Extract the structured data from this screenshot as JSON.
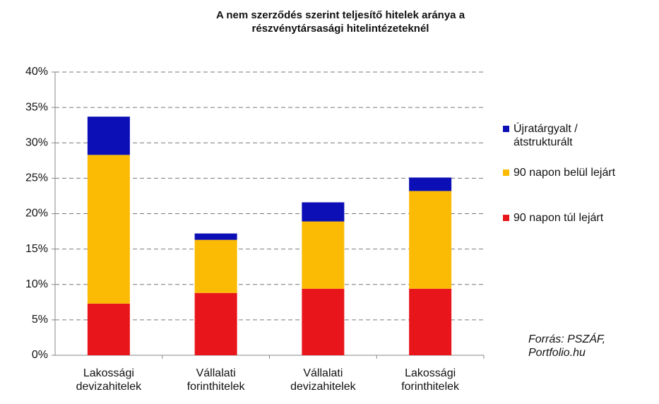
{
  "chart_data": {
    "type": "stacked_bar",
    "title": "A nem szerződés szerint teljesítő hitelek aránya a\nrészvénytársasági hitelintézeteknél",
    "categories": [
      "Lakossági\ndevizahitelek",
      "Vállalati\nforinthitelek",
      "Vállalati\ndevizahitelek",
      "Lakossági\nforinthitelek"
    ],
    "series": [
      {
        "name": "90 napon túl lejárt",
        "color": "#e8161b",
        "values": [
          7.3,
          8.8,
          9.4,
          9.4
        ]
      },
      {
        "name": "90 napon belül lejárt",
        "color": "#fbbb05",
        "values": [
          21.0,
          7.5,
          9.5,
          13.8
        ]
      },
      {
        "name": "Újratárgyalt /\nátstrukturált",
        "color": "#0b0fb5",
        "values": [
          5.4,
          0.9,
          2.7,
          1.9
        ]
      }
    ],
    "ylim": [
      0,
      40
    ],
    "yticks": [
      {
        "value": 0,
        "label": "0%"
      },
      {
        "value": 5,
        "label": "5%"
      },
      {
        "value": 10,
        "label": "10%"
      },
      {
        "value": 15,
        "label": "15%"
      },
      {
        "value": 20,
        "label": "20%"
      },
      {
        "value": 25,
        "label": "25%"
      },
      {
        "value": 30,
        "label": "30%"
      },
      {
        "value": 35,
        "label": "35%"
      },
      {
        "value": 40,
        "label": "40%"
      }
    ],
    "grid": true,
    "legend": "right",
    "annotation": "Forrás: PSZÁF,\nPortfolio.hu"
  }
}
